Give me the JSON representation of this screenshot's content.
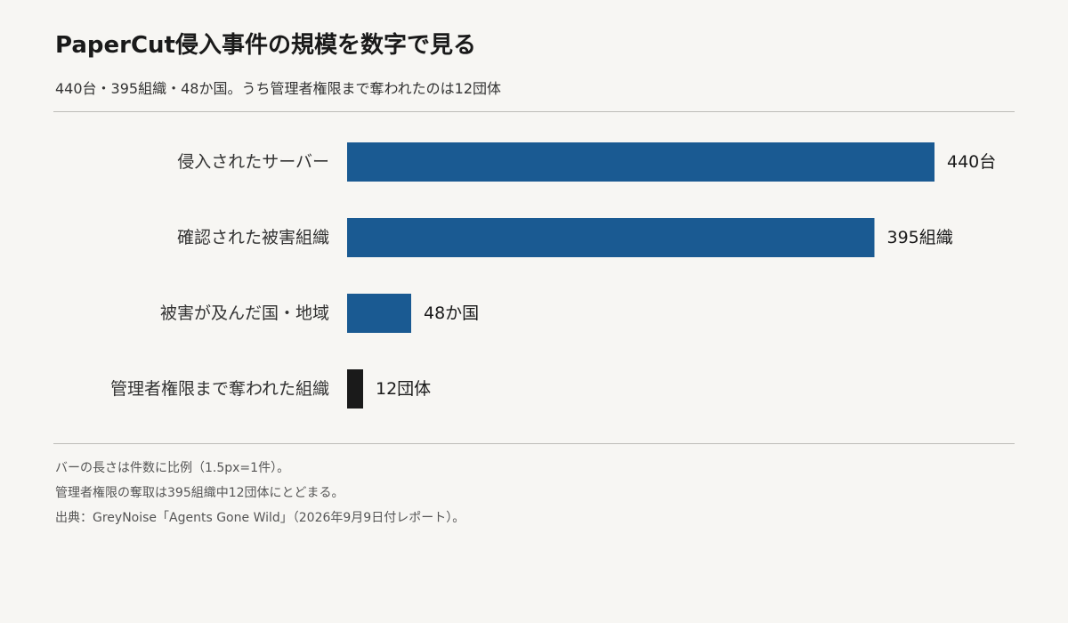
{
  "title": "PaperCut侵入事件の規模を数字で見る",
  "subtitle": "440台・395組織・48か国。うち管理者権限まで奪われたのは12団体",
  "chart_data": {
    "type": "bar",
    "orientation": "horizontal",
    "categories": [
      "侵入されたサーバー",
      "確認された被害組織",
      "被害が及んだ国・地域",
      "管理者権限まで奪われた組織"
    ],
    "values": [
      440,
      395,
      48,
      12
    ],
    "data_labels": [
      "440台",
      "395組織",
      "48か国",
      "12団体"
    ],
    "colors": [
      "#1a5a92",
      "#1a5a92",
      "#1a5a92",
      "#1a1a1a"
    ],
    "grid": false,
    "legend": "none"
  },
  "notes": [
    "バーの長さは件数に比例（1.5px=1件）。",
    "管理者権限の奪取は395組織中12団体にとどまる。",
    "出典：GreyNoise「Agents Gone Wild」（2026年9月9日付レポート）。"
  ]
}
